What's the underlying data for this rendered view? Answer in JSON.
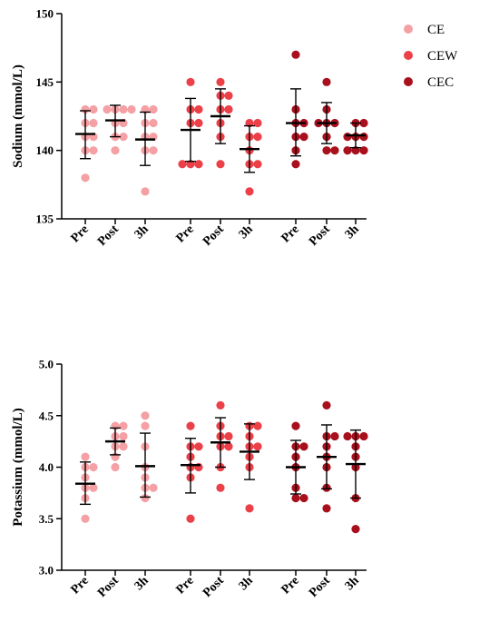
{
  "chart_data": [
    {
      "type": "scatter",
      "ylabel": "Sodium (mmol/L)",
      "ylim": [
        135,
        150
      ],
      "yticks": [
        "135",
        "140",
        "145",
        "150"
      ],
      "groups": [
        {
          "name": "CE",
          "color": "#f4a0a4",
          "timepoints": [
            {
              "label": "Pre",
              "points": [
                138,
                140,
                140,
                141,
                141,
                142,
                142,
                143,
                143
              ],
              "mean": 141.2,
              "sd_low": 139.4,
              "sd_high": 142.9
            },
            {
              "label": "Post",
              "points": [
                140,
                141,
                141,
                142,
                142,
                143,
                143,
                143,
                143
              ],
              "mean": 142.2,
              "sd_low": 141.0,
              "sd_high": 143.3
            },
            {
              "label": "3h",
              "points": [
                137,
                140,
                140,
                141,
                141,
                142,
                142,
                143,
                143
              ],
              "mean": 140.8,
              "sd_low": 138.9,
              "sd_high": 142.8
            }
          ]
        },
        {
          "name": "CEW",
          "color": "#ec4049",
          "timepoints": [
            {
              "label": "Pre",
              "points": [
                139,
                139,
                139,
                142,
                142,
                143,
                143,
                145
              ],
              "mean": 141.5,
              "sd_low": 139.2,
              "sd_high": 143.8
            },
            {
              "label": "Post",
              "points": [
                139,
                141,
                142,
                143,
                143,
                144,
                144,
                145
              ],
              "mean": 142.5,
              "sd_low": 140.5,
              "sd_high": 144.5
            },
            {
              "label": "3h",
              "points": [
                137,
                139,
                139,
                140,
                141,
                141,
                142,
                142
              ],
              "mean": 140.1,
              "sd_low": 138.4,
              "sd_high": 141.8
            }
          ]
        },
        {
          "name": "CEC",
          "color": "#a8101d",
          "timepoints": [
            {
              "label": "Pre",
              "points": [
                139,
                140,
                141,
                141,
                142,
                142,
                143,
                147
              ],
              "mean": 142.0,
              "sd_low": 139.6,
              "sd_high": 144.5
            },
            {
              "label": "Post",
              "points": [
                140,
                140,
                141,
                142,
                142,
                142,
                143,
                145
              ],
              "mean": 142.0,
              "sd_low": 140.5,
              "sd_high": 143.5
            },
            {
              "label": "3h",
              "points": [
                140,
                140,
                140,
                141,
                141,
                141,
                142,
                142
              ],
              "mean": 141.1,
              "sd_low": 140.2,
              "sd_high": 142.0
            }
          ]
        }
      ]
    },
    {
      "type": "scatter",
      "ylabel": "Potassium (mmol/L)",
      "ylim": [
        3.0,
        5.0
      ],
      "yticks": [
        "3.0",
        "3.5",
        "4.0",
        "4.5",
        "5.0"
      ],
      "groups": [
        {
          "name": "CE",
          "color": "#f4a0a4",
          "timepoints": [
            {
              "label": "Pre",
              "points": [
                3.5,
                3.7,
                3.8,
                3.8,
                3.9,
                4.0,
                4.0,
                4.1
              ],
              "mean": 3.84,
              "sd_low": 3.64,
              "sd_high": 4.05
            },
            {
              "label": "Post",
              "points": [
                4.0,
                4.1,
                4.2,
                4.2,
                4.3,
                4.3,
                4.4,
                4.4
              ],
              "mean": 4.25,
              "sd_low": 4.12,
              "sd_high": 4.38
            },
            {
              "label": "3h",
              "points": [
                3.7,
                3.8,
                3.8,
                3.9,
                4.0,
                4.2,
                4.4,
                4.5
              ],
              "mean": 4.01,
              "sd_low": 3.71,
              "sd_high": 4.33
            }
          ]
        },
        {
          "name": "CEW",
          "color": "#ec4049",
          "timepoints": [
            {
              "label": "Pre",
              "points": [
                3.5,
                3.9,
                4.0,
                4.0,
                4.1,
                4.2,
                4.2,
                4.4
              ],
              "mean": 4.02,
              "sd_low": 3.75,
              "sd_high": 4.28
            },
            {
              "label": "Post",
              "points": [
                3.8,
                4.0,
                4.2,
                4.2,
                4.3,
                4.3,
                4.4,
                4.6
              ],
              "mean": 4.24,
              "sd_low": 4.0,
              "sd_high": 4.48
            },
            {
              "label": "3h",
              "points": [
                3.6,
                4.0,
                4.1,
                4.2,
                4.2,
                4.3,
                4.4,
                4.4
              ],
              "mean": 4.15,
              "sd_low": 3.88,
              "sd_high": 4.42
            }
          ]
        },
        {
          "name": "CEC",
          "color": "#a8101d",
          "timepoints": [
            {
              "label": "Pre",
              "points": [
                3.7,
                3.7,
                3.8,
                4.0,
                4.1,
                4.2,
                4.2,
                4.4
              ],
              "mean": 4.0,
              "sd_low": 3.74,
              "sd_high": 4.26
            },
            {
              "label": "Post",
              "points": [
                3.6,
                3.8,
                4.0,
                4.1,
                4.2,
                4.3,
                4.3,
                4.6
              ],
              "mean": 4.1,
              "sd_low": 3.79,
              "sd_high": 4.41
            },
            {
              "label": "3h",
              "points": [
                3.4,
                3.7,
                4.0,
                4.1,
                4.2,
                4.3,
                4.3,
                4.3
              ],
              "mean": 4.03,
              "sd_low": 3.7,
              "sd_high": 4.36
            }
          ]
        }
      ]
    }
  ],
  "legend": {
    "placement": "top-right",
    "items": [
      {
        "label": "CE",
        "color": "#f4a0a4"
      },
      {
        "label": "CEW",
        "color": "#ec4049"
      },
      {
        "label": "CEC",
        "color": "#a8101d"
      }
    ]
  }
}
